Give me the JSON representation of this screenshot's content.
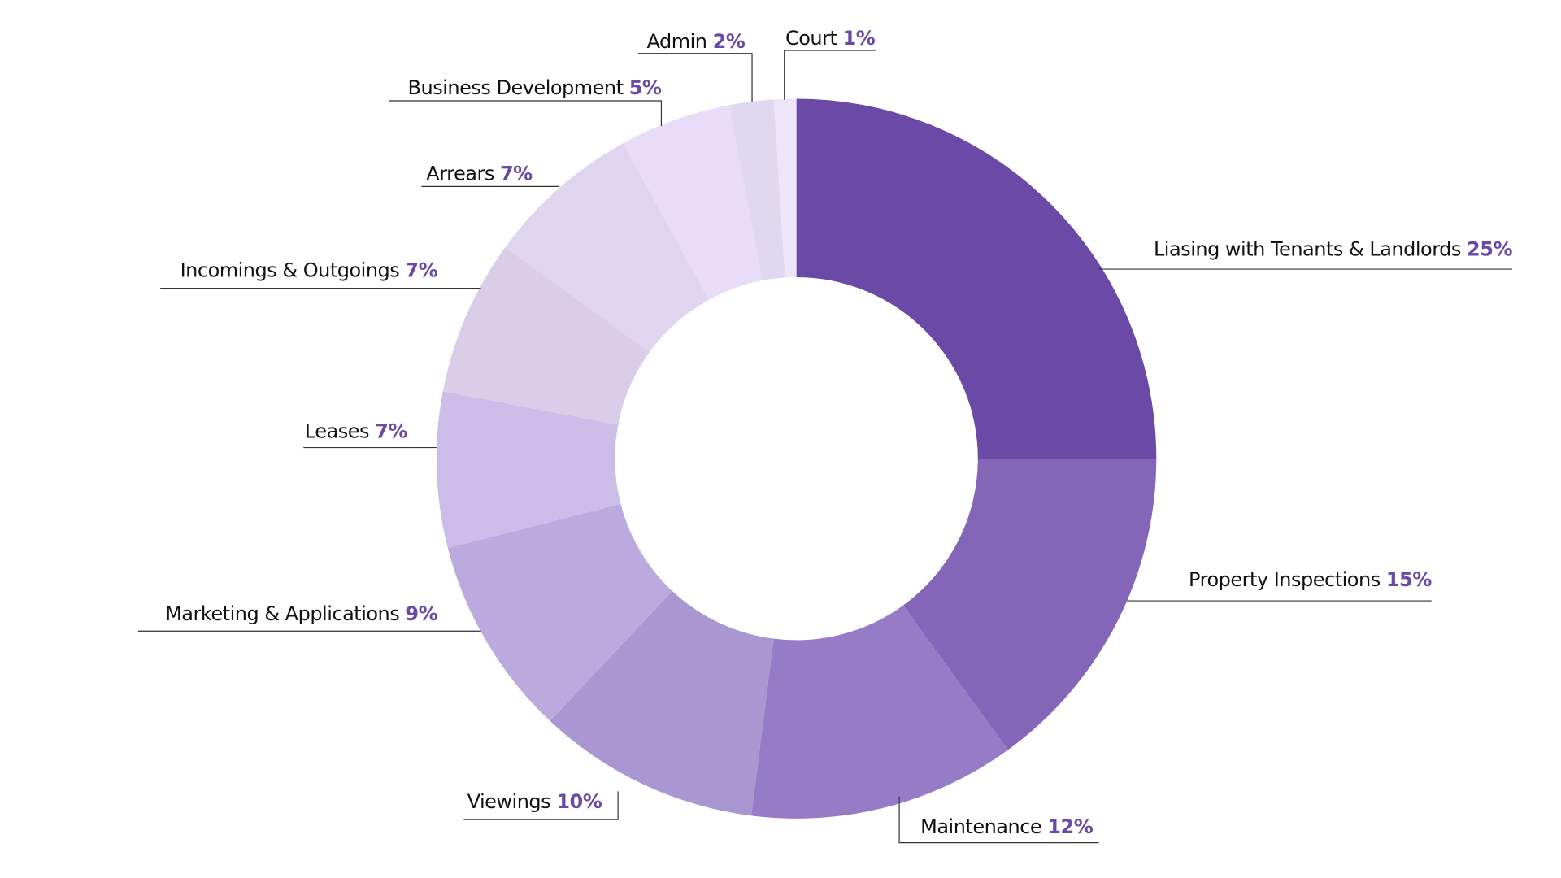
{
  "chart_data": {
    "type": "donut",
    "categories": [
      "Liasing with Tenants & Landlords",
      "Property Inspections",
      "Maintenance",
      "Viewings",
      "Marketing & Applications",
      "Leases",
      "Incomings & Outgoings",
      "Arrears",
      "Business Development",
      "Admin",
      "Court"
    ],
    "values": [
      25,
      15,
      12,
      10,
      9,
      7,
      7,
      7,
      5,
      2,
      1
    ],
    "value_labels": [
      "25%",
      "15%",
      "12%",
      "10%",
      "9%",
      "7%",
      "7%",
      "7%",
      "5%",
      "2%",
      "1%"
    ],
    "colors": [
      "#6b4aa7",
      "#8466b8",
      "#967cc6",
      "#aa97d1",
      "#bcaade",
      "#cbbde7",
      "#d9cde8",
      "#e0d5ee",
      "#e8dcf7",
      "#e0d8ef",
      "#efe5fb"
    ]
  }
}
